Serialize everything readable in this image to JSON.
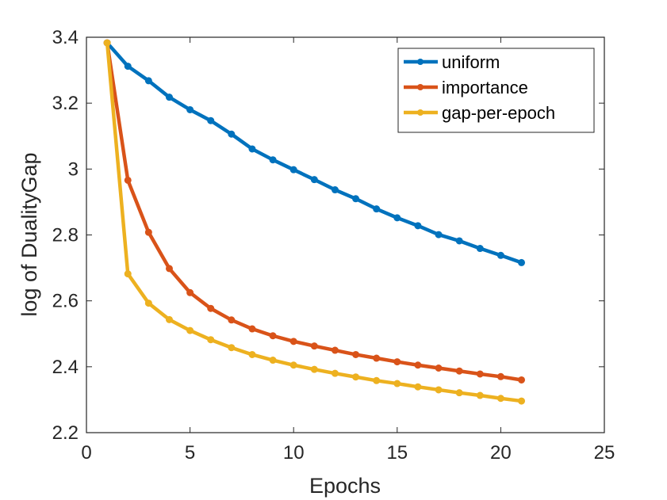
{
  "chart_data": {
    "type": "line",
    "title": "",
    "xlabel": "Epochs",
    "ylabel": "log of DualityGap",
    "xlim": [
      0,
      25
    ],
    "ylim": [
      2.2,
      3.4
    ],
    "xticks": [
      0,
      5,
      10,
      15,
      20,
      25
    ],
    "yticks": [
      2.2,
      2.4,
      2.6,
      2.8,
      3.0,
      3.2,
      3.4
    ],
    "xtick_labels": [
      "0",
      "5",
      "10",
      "15",
      "20",
      "25"
    ],
    "ytick_labels": [
      "2.2",
      "2.4",
      "2.6",
      "2.8",
      "3",
      "3.2",
      "3.4"
    ],
    "grid": false,
    "legend_position": "top-right",
    "x": [
      1,
      2,
      3,
      4,
      5,
      6,
      7,
      8,
      9,
      10,
      11,
      12,
      13,
      14,
      15,
      16,
      17,
      18,
      19,
      20,
      21
    ],
    "series": [
      {
        "name": "uniform",
        "color": "#0072BD",
        "values": [
          3.383,
          3.312,
          3.268,
          3.218,
          3.18,
          3.147,
          3.106,
          3.061,
          3.028,
          2.998,
          2.968,
          2.937,
          2.91,
          2.879,
          2.852,
          2.828,
          2.801,
          2.782,
          2.759,
          2.738,
          2.716
        ]
      },
      {
        "name": "importance",
        "color": "#D95319",
        "values": [
          3.383,
          2.966,
          2.808,
          2.698,
          2.625,
          2.577,
          2.542,
          2.515,
          2.494,
          2.477,
          2.463,
          2.45,
          2.437,
          2.426,
          2.415,
          2.405,
          2.396,
          2.387,
          2.378,
          2.37,
          2.36
        ]
      },
      {
        "name": "gap-per-epoch",
        "color": "#EDB120",
        "values": [
          3.383,
          2.682,
          2.593,
          2.543,
          2.51,
          2.482,
          2.458,
          2.437,
          2.42,
          2.405,
          2.392,
          2.38,
          2.369,
          2.358,
          2.349,
          2.339,
          2.33,
          2.321,
          2.313,
          2.304,
          2.296
        ]
      }
    ]
  }
}
